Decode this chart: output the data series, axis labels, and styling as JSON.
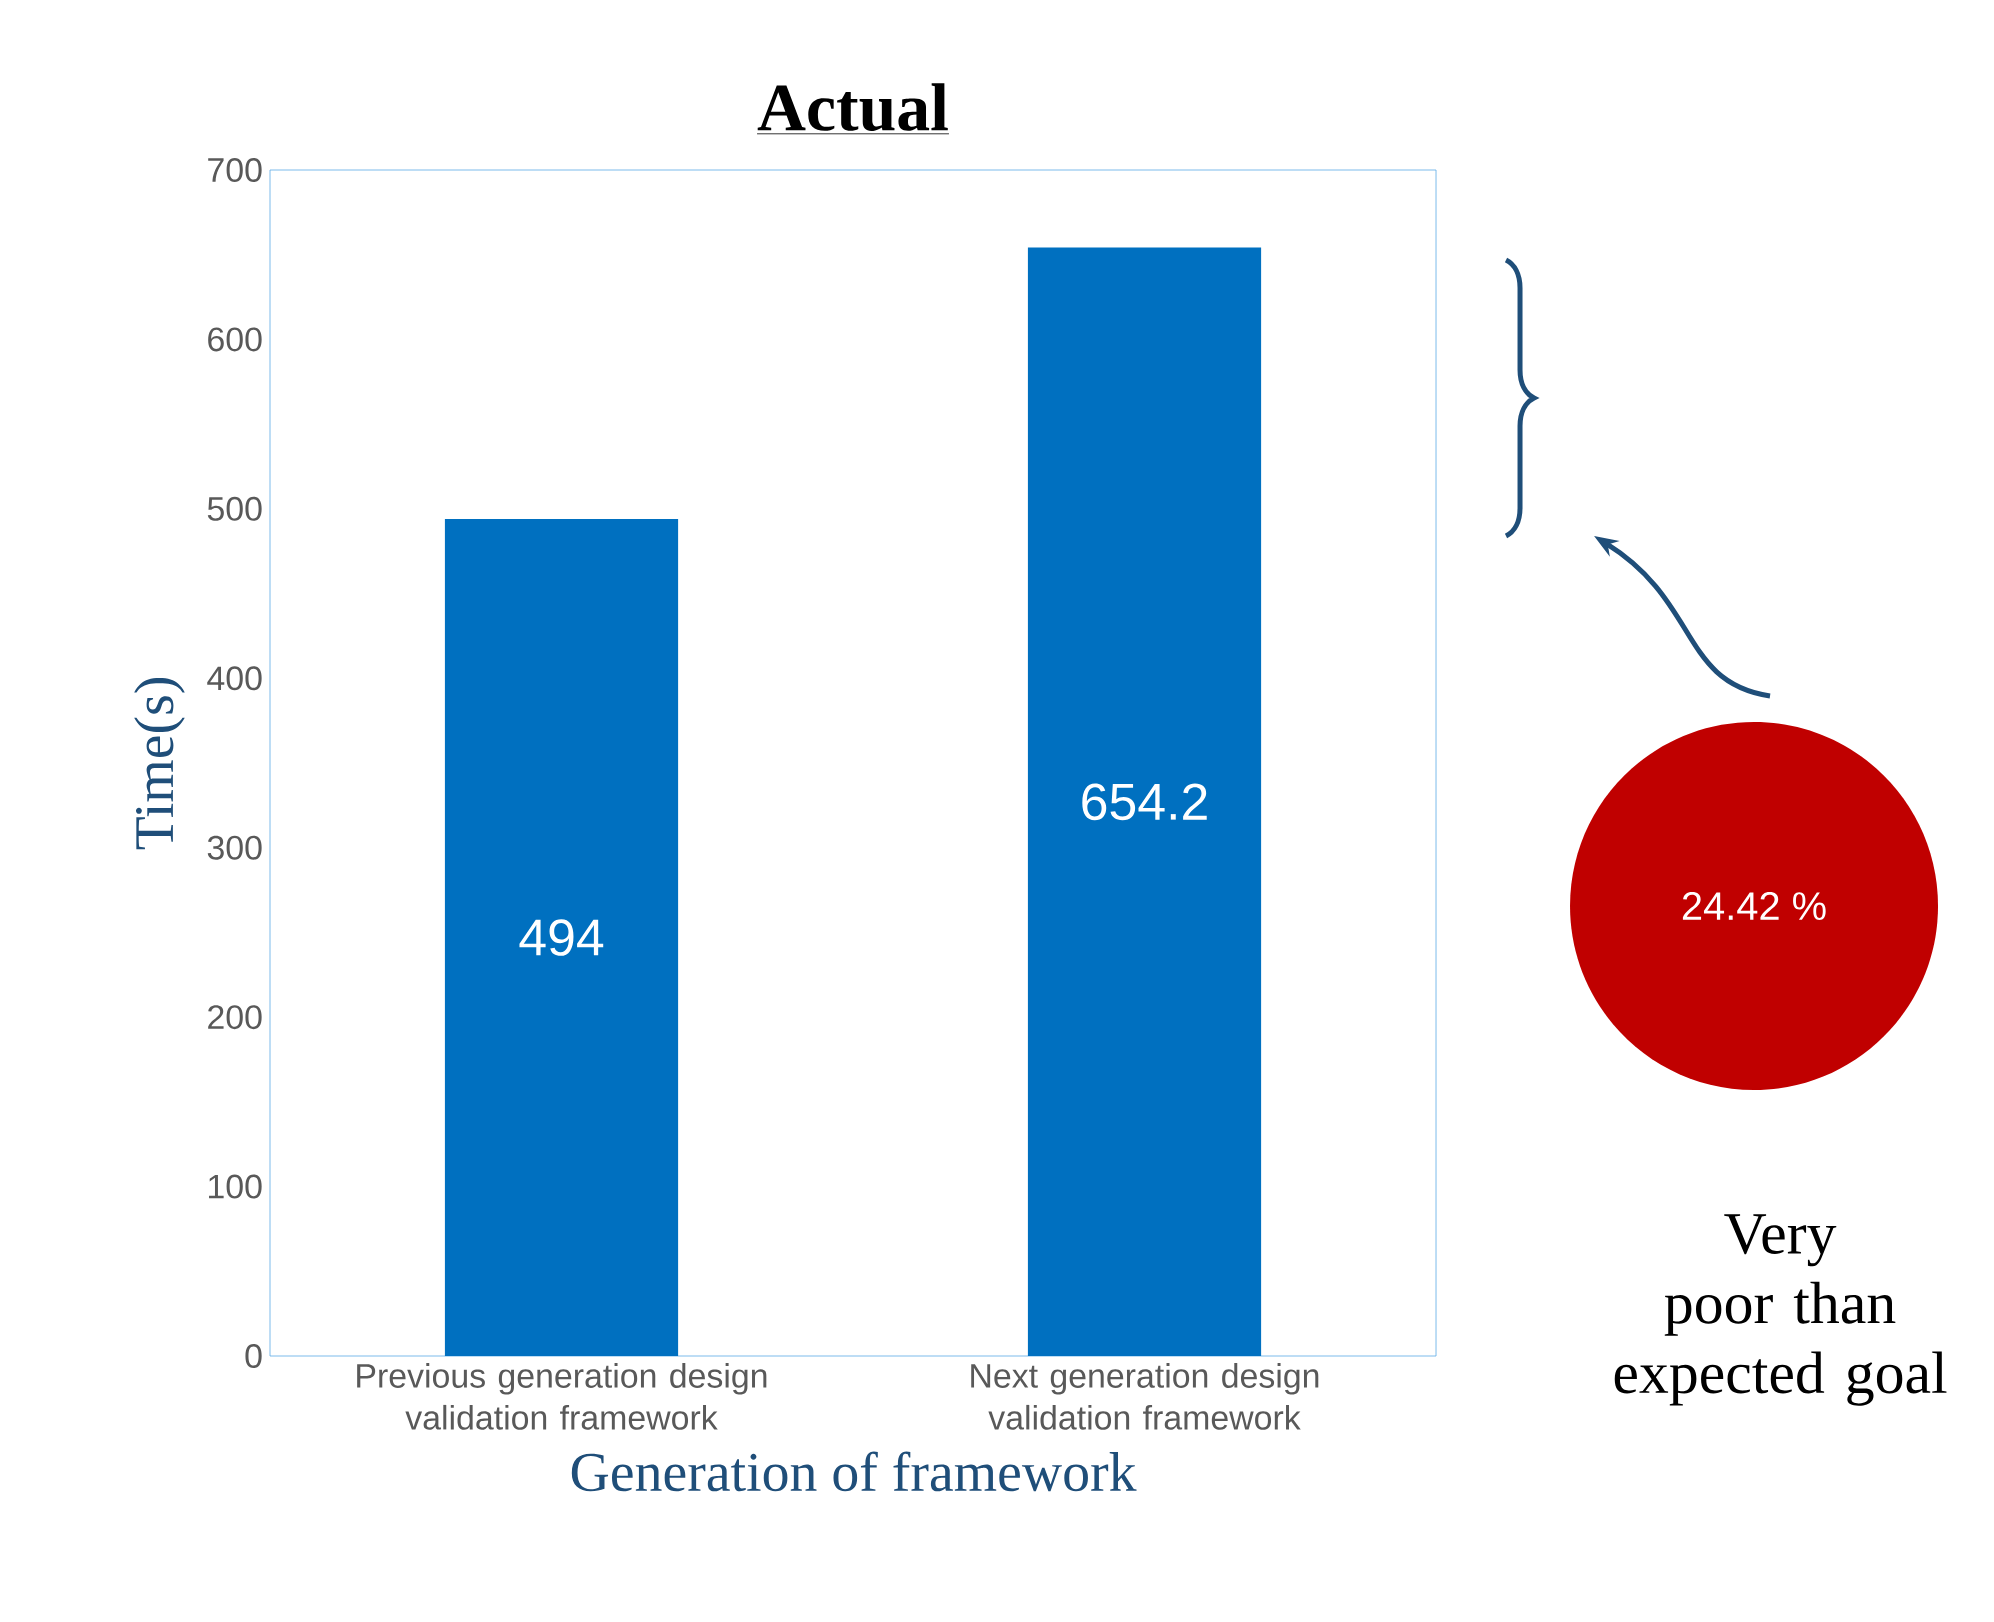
{
  "chart_data": {
    "type": "bar",
    "title": "Actual",
    "xlabel": "Generation of framework",
    "ylabel": "Time(s)",
    "categories": [
      "Previous generation design validation framework",
      "Next generation design validation framework"
    ],
    "values": [
      494,
      654.2
    ],
    "color": "#0070c0",
    "data_labels": true,
    "ylim": [
      0,
      700
    ],
    "yticks": [
      0,
      100,
      200,
      300,
      400,
      500,
      600,
      700
    ],
    "grid": false,
    "annotations": [
      "24.42 %",
      "Very poor than expected goal"
    ]
  }
}
